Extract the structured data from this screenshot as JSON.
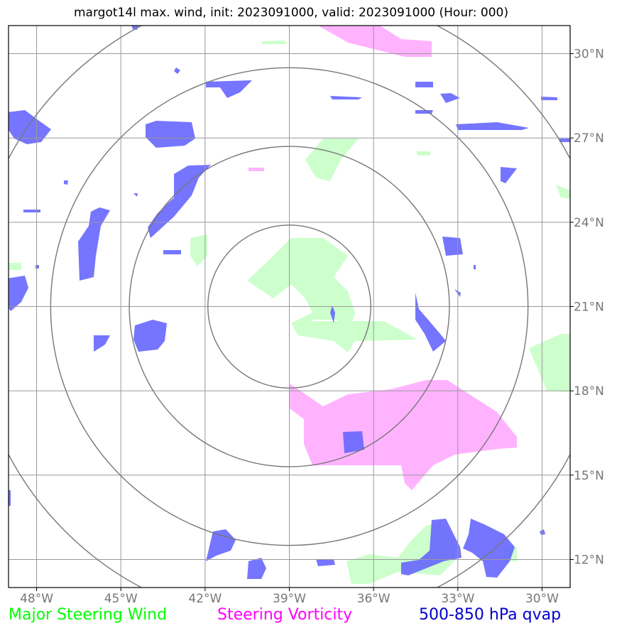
{
  "title": "margot14l max. wind, init: 2023091000, valid: 2023091000 (Hour: 000)",
  "map": {
    "lon_ticks": [
      "48°W",
      "45°W",
      "42°W",
      "39°W",
      "36°W",
      "33°W",
      "30°W"
    ],
    "lat_ticks": [
      "30°N",
      "27°N",
      "24°N",
      "21°N",
      "18°N",
      "15°N",
      "12°N"
    ],
    "lon_range": [
      -49,
      -29
    ],
    "lat_range": [
      11,
      31
    ],
    "center": {
      "lon": -39,
      "lat": 21
    },
    "range_rings_deg": [
      2.9,
      5.7,
      8.5,
      11.3
    ],
    "colors": {
      "steering_wind": "#ccffcc",
      "steering_vorticity": "#ffb3ff",
      "qvap": "#6666ff",
      "overlap": "#7733ee"
    }
  },
  "legend": {
    "wind": {
      "label": "Major Steering Wind",
      "color": "#00ff00"
    },
    "vorticity": {
      "label": "Steering Vorticity",
      "color": "#ff00ff"
    },
    "qvap": {
      "label": "500-850 hPa qvap",
      "color": "#0000cc"
    }
  }
}
